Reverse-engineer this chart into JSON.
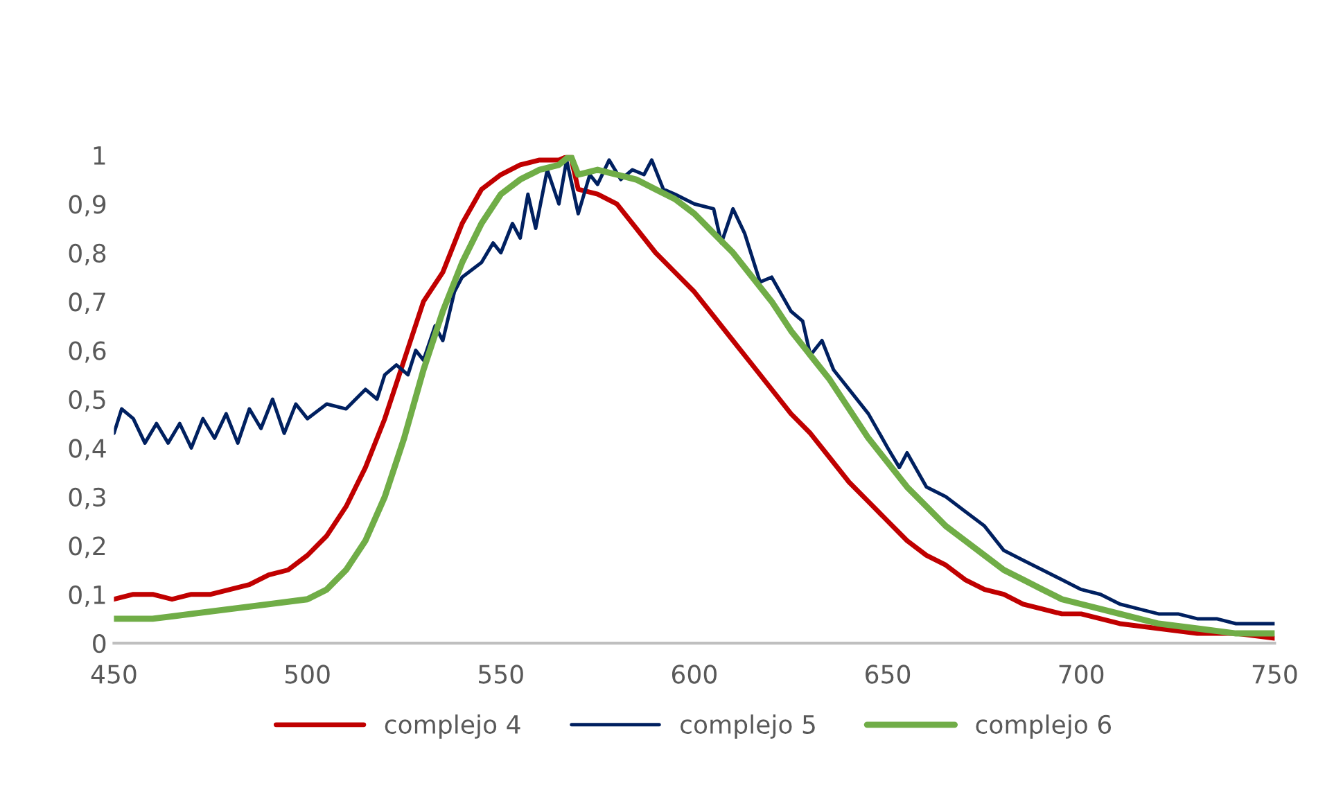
{
  "chart_data": {
    "type": "line",
    "xlim": [
      450,
      750
    ],
    "xticks": [
      450,
      500,
      550,
      600,
      650,
      700,
      750
    ],
    "ylim": [
      0,
      1
    ],
    "yticks": [
      0,
      {
        "value": 0.1,
        "label": "0,1"
      },
      {
        "value": 0.2,
        "label": "0,2"
      },
      {
        "value": 0.3,
        "label": "0,3"
      },
      {
        "value": 0.4,
        "label": "0,4"
      },
      {
        "value": 0.5,
        "label": "0,5"
      },
      {
        "value": 0.6,
        "label": "0,6"
      },
      {
        "value": 0.7,
        "label": "0,7"
      },
      {
        "value": 0.8,
        "label": "0,8"
      },
      {
        "value": 0.9,
        "label": "0,9"
      },
      1
    ],
    "grid": false,
    "legend": "bottom",
    "marker": "none",
    "line_style": "solid",
    "series": [
      {
        "name": "complejo 4",
        "color": "#c00000",
        "x": [
          450,
          455,
          460,
          465,
          470,
          475,
          480,
          485,
          490,
          495,
          500,
          505,
          510,
          515,
          520,
          525,
          530,
          535,
          540,
          545,
          550,
          555,
          560,
          565,
          568,
          570,
          575,
          580,
          585,
          590,
          595,
          600,
          605,
          610,
          615,
          620,
          625,
          630,
          635,
          640,
          645,
          650,
          655,
          660,
          665,
          670,
          675,
          680,
          685,
          690,
          695,
          700,
          710,
          720,
          730,
          740,
          750
        ],
        "values": [
          0.09,
          0.1,
          0.1,
          0.09,
          0.1,
          0.1,
          0.11,
          0.12,
          0.14,
          0.15,
          0.18,
          0.22,
          0.28,
          0.36,
          0.46,
          0.58,
          0.7,
          0.76,
          0.86,
          0.93,
          0.96,
          0.98,
          0.99,
          0.99,
          1.0,
          0.93,
          0.92,
          0.9,
          0.85,
          0.8,
          0.76,
          0.72,
          0.67,
          0.62,
          0.57,
          0.52,
          0.47,
          0.43,
          0.38,
          0.33,
          0.29,
          0.25,
          0.21,
          0.18,
          0.16,
          0.13,
          0.11,
          0.1,
          0.08,
          0.07,
          0.06,
          0.06,
          0.04,
          0.03,
          0.02,
          0.02,
          0.01
        ]
      },
      {
        "name": "complejo 5",
        "color": "#002060",
        "x": [
          450,
          452,
          455,
          458,
          461,
          464,
          467,
          470,
          473,
          476,
          479,
          482,
          485,
          488,
          491,
          494,
          497,
          500,
          505,
          510,
          515,
          518,
          520,
          523,
          526,
          528,
          530,
          533,
          535,
          538,
          540,
          545,
          548,
          550,
          553,
          555,
          557,
          559,
          562,
          565,
          567,
          570,
          573,
          575,
          578,
          581,
          584,
          587,
          589,
          592,
          595,
          600,
          605,
          607,
          610,
          613,
          617,
          620,
          625,
          628,
          630,
          633,
          636,
          640,
          645,
          650,
          653,
          655,
          660,
          665,
          670,
          675,
          680,
          685,
          690,
          695,
          700,
          705,
          710,
          715,
          720,
          725,
          730,
          735,
          740,
          745,
          750
        ],
        "values": [
          0.43,
          0.48,
          0.46,
          0.41,
          0.45,
          0.41,
          0.45,
          0.4,
          0.46,
          0.42,
          0.47,
          0.41,
          0.48,
          0.44,
          0.5,
          0.43,
          0.49,
          0.46,
          0.49,
          0.48,
          0.52,
          0.5,
          0.55,
          0.57,
          0.55,
          0.6,
          0.58,
          0.65,
          0.62,
          0.72,
          0.75,
          0.78,
          0.82,
          0.8,
          0.86,
          0.83,
          0.92,
          0.85,
          0.97,
          0.9,
          0.99,
          0.88,
          0.96,
          0.94,
          0.99,
          0.95,
          0.97,
          0.96,
          0.99,
          0.93,
          0.92,
          0.9,
          0.89,
          0.82,
          0.89,
          0.84,
          0.74,
          0.75,
          0.68,
          0.66,
          0.59,
          0.62,
          0.56,
          0.52,
          0.47,
          0.4,
          0.36,
          0.39,
          0.32,
          0.3,
          0.27,
          0.24,
          0.19,
          0.17,
          0.15,
          0.13,
          0.11,
          0.1,
          0.08,
          0.07,
          0.06,
          0.06,
          0.05,
          0.05,
          0.04,
          0.04,
          0.04
        ]
      },
      {
        "name": "complejo 6",
        "color": "#70ad47",
        "x": [
          450,
          460,
          470,
          480,
          490,
          500,
          505,
          510,
          515,
          520,
          525,
          530,
          535,
          540,
          545,
          550,
          555,
          560,
          565,
          568,
          570,
          575,
          580,
          585,
          590,
          595,
          600,
          605,
          610,
          615,
          620,
          625,
          630,
          635,
          640,
          645,
          650,
          655,
          660,
          665,
          670,
          675,
          680,
          685,
          690,
          695,
          700,
          710,
          720,
          730,
          740,
          750
        ],
        "values": [
          0.05,
          0.05,
          0.06,
          0.07,
          0.08,
          0.09,
          0.11,
          0.15,
          0.21,
          0.3,
          0.42,
          0.56,
          0.68,
          0.78,
          0.86,
          0.92,
          0.95,
          0.97,
          0.98,
          1.0,
          0.96,
          0.97,
          0.96,
          0.95,
          0.93,
          0.91,
          0.88,
          0.84,
          0.8,
          0.75,
          0.7,
          0.64,
          0.59,
          0.54,
          0.48,
          0.42,
          0.37,
          0.32,
          0.28,
          0.24,
          0.21,
          0.18,
          0.15,
          0.13,
          0.11,
          0.09,
          0.08,
          0.06,
          0.04,
          0.03,
          0.02,
          0.02
        ]
      }
    ]
  }
}
